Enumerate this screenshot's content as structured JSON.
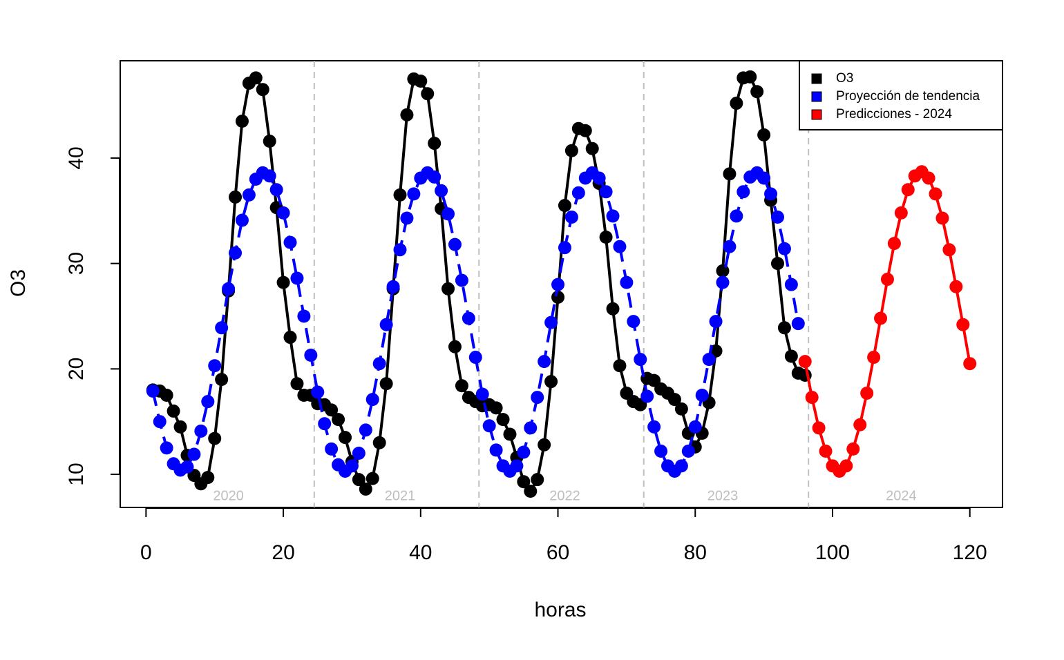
{
  "chart_data": {
    "type": "line",
    "x_label": "horas",
    "y_label": "O3",
    "xlim": [
      -3.76,
      124.76
    ],
    "ylim": [
      6.86,
      49.23
    ],
    "xticks": [
      0,
      20,
      40,
      60,
      80,
      100,
      120
    ],
    "yticks": [
      10,
      20,
      30,
      40
    ],
    "separators": [
      24.5,
      48.5,
      72.5,
      96.5
    ],
    "separator_color": "#bebebe",
    "period_labels": [
      {
        "x": 12,
        "label": "2020"
      },
      {
        "x": 37,
        "label": "2021"
      },
      {
        "x": 61,
        "label": "2022"
      },
      {
        "x": 84,
        "label": "2023"
      },
      {
        "x": 110,
        "label": "2024"
      }
    ],
    "legend": "top-right",
    "series": [
      {
        "name": "O3",
        "color": "#000000",
        "dash": false,
        "x": [
          1,
          2,
          3,
          4,
          5,
          6,
          7,
          8,
          9,
          10,
          11,
          12,
          13,
          14,
          15,
          16,
          17,
          18,
          19,
          20,
          21,
          22,
          23,
          24,
          25,
          26,
          27,
          28,
          29,
          30,
          31,
          32,
          33,
          34,
          35,
          36,
          37,
          38,
          39,
          40,
          41,
          42,
          43,
          44,
          45,
          46,
          47,
          48,
          49,
          50,
          51,
          52,
          53,
          54,
          55,
          56,
          57,
          58,
          59,
          60,
          61,
          62,
          63,
          64,
          65,
          66,
          67,
          68,
          69,
          70,
          71,
          72,
          73,
          74,
          75,
          76,
          77,
          78,
          79,
          80,
          81,
          82,
          83,
          84,
          85,
          86,
          87,
          88,
          89,
          90,
          91,
          92,
          93,
          94,
          95,
          96
        ],
        "values": [
          18.0,
          17.9,
          17.5,
          16.0,
          14.5,
          11.8,
          9.9,
          9.1,
          9.7,
          13.4,
          19.0,
          27.4,
          36.3,
          43.5,
          47.1,
          47.6,
          46.5,
          41.6,
          35.3,
          28.2,
          23.0,
          18.6,
          17.5,
          17.5,
          16.7,
          16.6,
          16.1,
          15.2,
          13.5,
          11.2,
          9.5,
          8.6,
          9.6,
          13.0,
          18.6,
          27.6,
          36.5,
          44.1,
          47.5,
          47.3,
          46.1,
          41.4,
          35.2,
          27.6,
          22.1,
          18.4,
          17.3,
          16.9,
          16.5,
          16.6,
          16.3,
          15.2,
          13.8,
          11.6,
          9.3,
          8.4,
          9.5,
          12.8,
          18.8,
          26.8,
          35.5,
          40.7,
          42.8,
          42.6,
          40.9,
          37.6,
          32.5,
          25.7,
          20.3,
          17.7,
          16.9,
          16.6,
          19.1,
          18.9,
          18.1,
          17.7,
          17.1,
          16.2,
          13.9,
          12.6,
          13.9,
          16.8,
          21.7,
          29.3,
          38.5,
          45.2,
          47.6,
          47.7,
          46.3,
          42.2,
          36.0,
          30.0,
          23.9,
          21.2,
          19.6,
          19.4
        ]
      },
      {
        "name": "Proyección de tendencia",
        "color": "#0000ff",
        "dash": true,
        "x": [
          1,
          2,
          3,
          4,
          5,
          6,
          7,
          8,
          9,
          10,
          11,
          12,
          13,
          14,
          15,
          16,
          17,
          18,
          19,
          20,
          21,
          22,
          23,
          24,
          25,
          26,
          27,
          28,
          29,
          30,
          31,
          32,
          33,
          34,
          35,
          36,
          37,
          38,
          39,
          40,
          41,
          42,
          43,
          44,
          45,
          46,
          47,
          48,
          49,
          50,
          51,
          52,
          53,
          54,
          55,
          56,
          57,
          58,
          59,
          60,
          61,
          62,
          63,
          64,
          65,
          66,
          67,
          68,
          69,
          70,
          71,
          72,
          73,
          74,
          75,
          76,
          77,
          78,
          79,
          80,
          81,
          82,
          83,
          84,
          85,
          86,
          87,
          88,
          89,
          90,
          91,
          92,
          93,
          94,
          95
        ],
        "values": [
          17.9,
          15.0,
          12.5,
          11.0,
          10.4,
          10.7,
          11.9,
          14.1,
          16.9,
          20.3,
          23.9,
          27.6,
          31.0,
          34.1,
          36.5,
          38.0,
          38.6,
          38.3,
          37.0,
          34.8,
          32.0,
          28.6,
          25.0,
          21.3,
          17.8,
          14.8,
          12.4,
          10.9,
          10.3,
          10.8,
          12.0,
          14.2,
          17.1,
          20.5,
          24.2,
          27.8,
          31.3,
          34.3,
          36.6,
          38.1,
          38.6,
          38.2,
          36.9,
          34.7,
          31.8,
          28.4,
          24.8,
          21.1,
          17.6,
          14.6,
          12.3,
          10.8,
          10.3,
          10.8,
          12.1,
          14.4,
          17.3,
          20.7,
          24.4,
          28.0,
          31.5,
          34.4,
          36.7,
          38.1,
          38.6,
          38.1,
          36.8,
          34.5,
          31.6,
          28.2,
          24.5,
          20.9,
          17.4,
          14.5,
          12.2,
          10.8,
          10.3,
          10.8,
          12.2,
          14.5,
          17.5,
          20.9,
          24.5,
          28.2,
          31.6,
          34.5,
          36.8,
          38.2,
          38.6,
          38.1,
          36.6,
          34.4,
          31.4,
          28.0,
          24.3
        ]
      },
      {
        "name": "Predicciones - 2024",
        "color": "#ff0000",
        "dash": false,
        "x": [
          96,
          97,
          98,
          99,
          100,
          101,
          102,
          103,
          104,
          105,
          106,
          107,
          108,
          109,
          110,
          111,
          112,
          113,
          114,
          115,
          116,
          117,
          118,
          119,
          120
        ],
        "values": [
          20.7,
          17.3,
          14.4,
          12.2,
          10.8,
          10.3,
          10.8,
          12.4,
          14.7,
          17.7,
          21.1,
          24.8,
          28.5,
          31.9,
          34.8,
          37.0,
          38.3,
          38.7,
          38.1,
          36.6,
          34.3,
          31.3,
          27.8,
          24.2,
          20.5
        ]
      }
    ]
  }
}
